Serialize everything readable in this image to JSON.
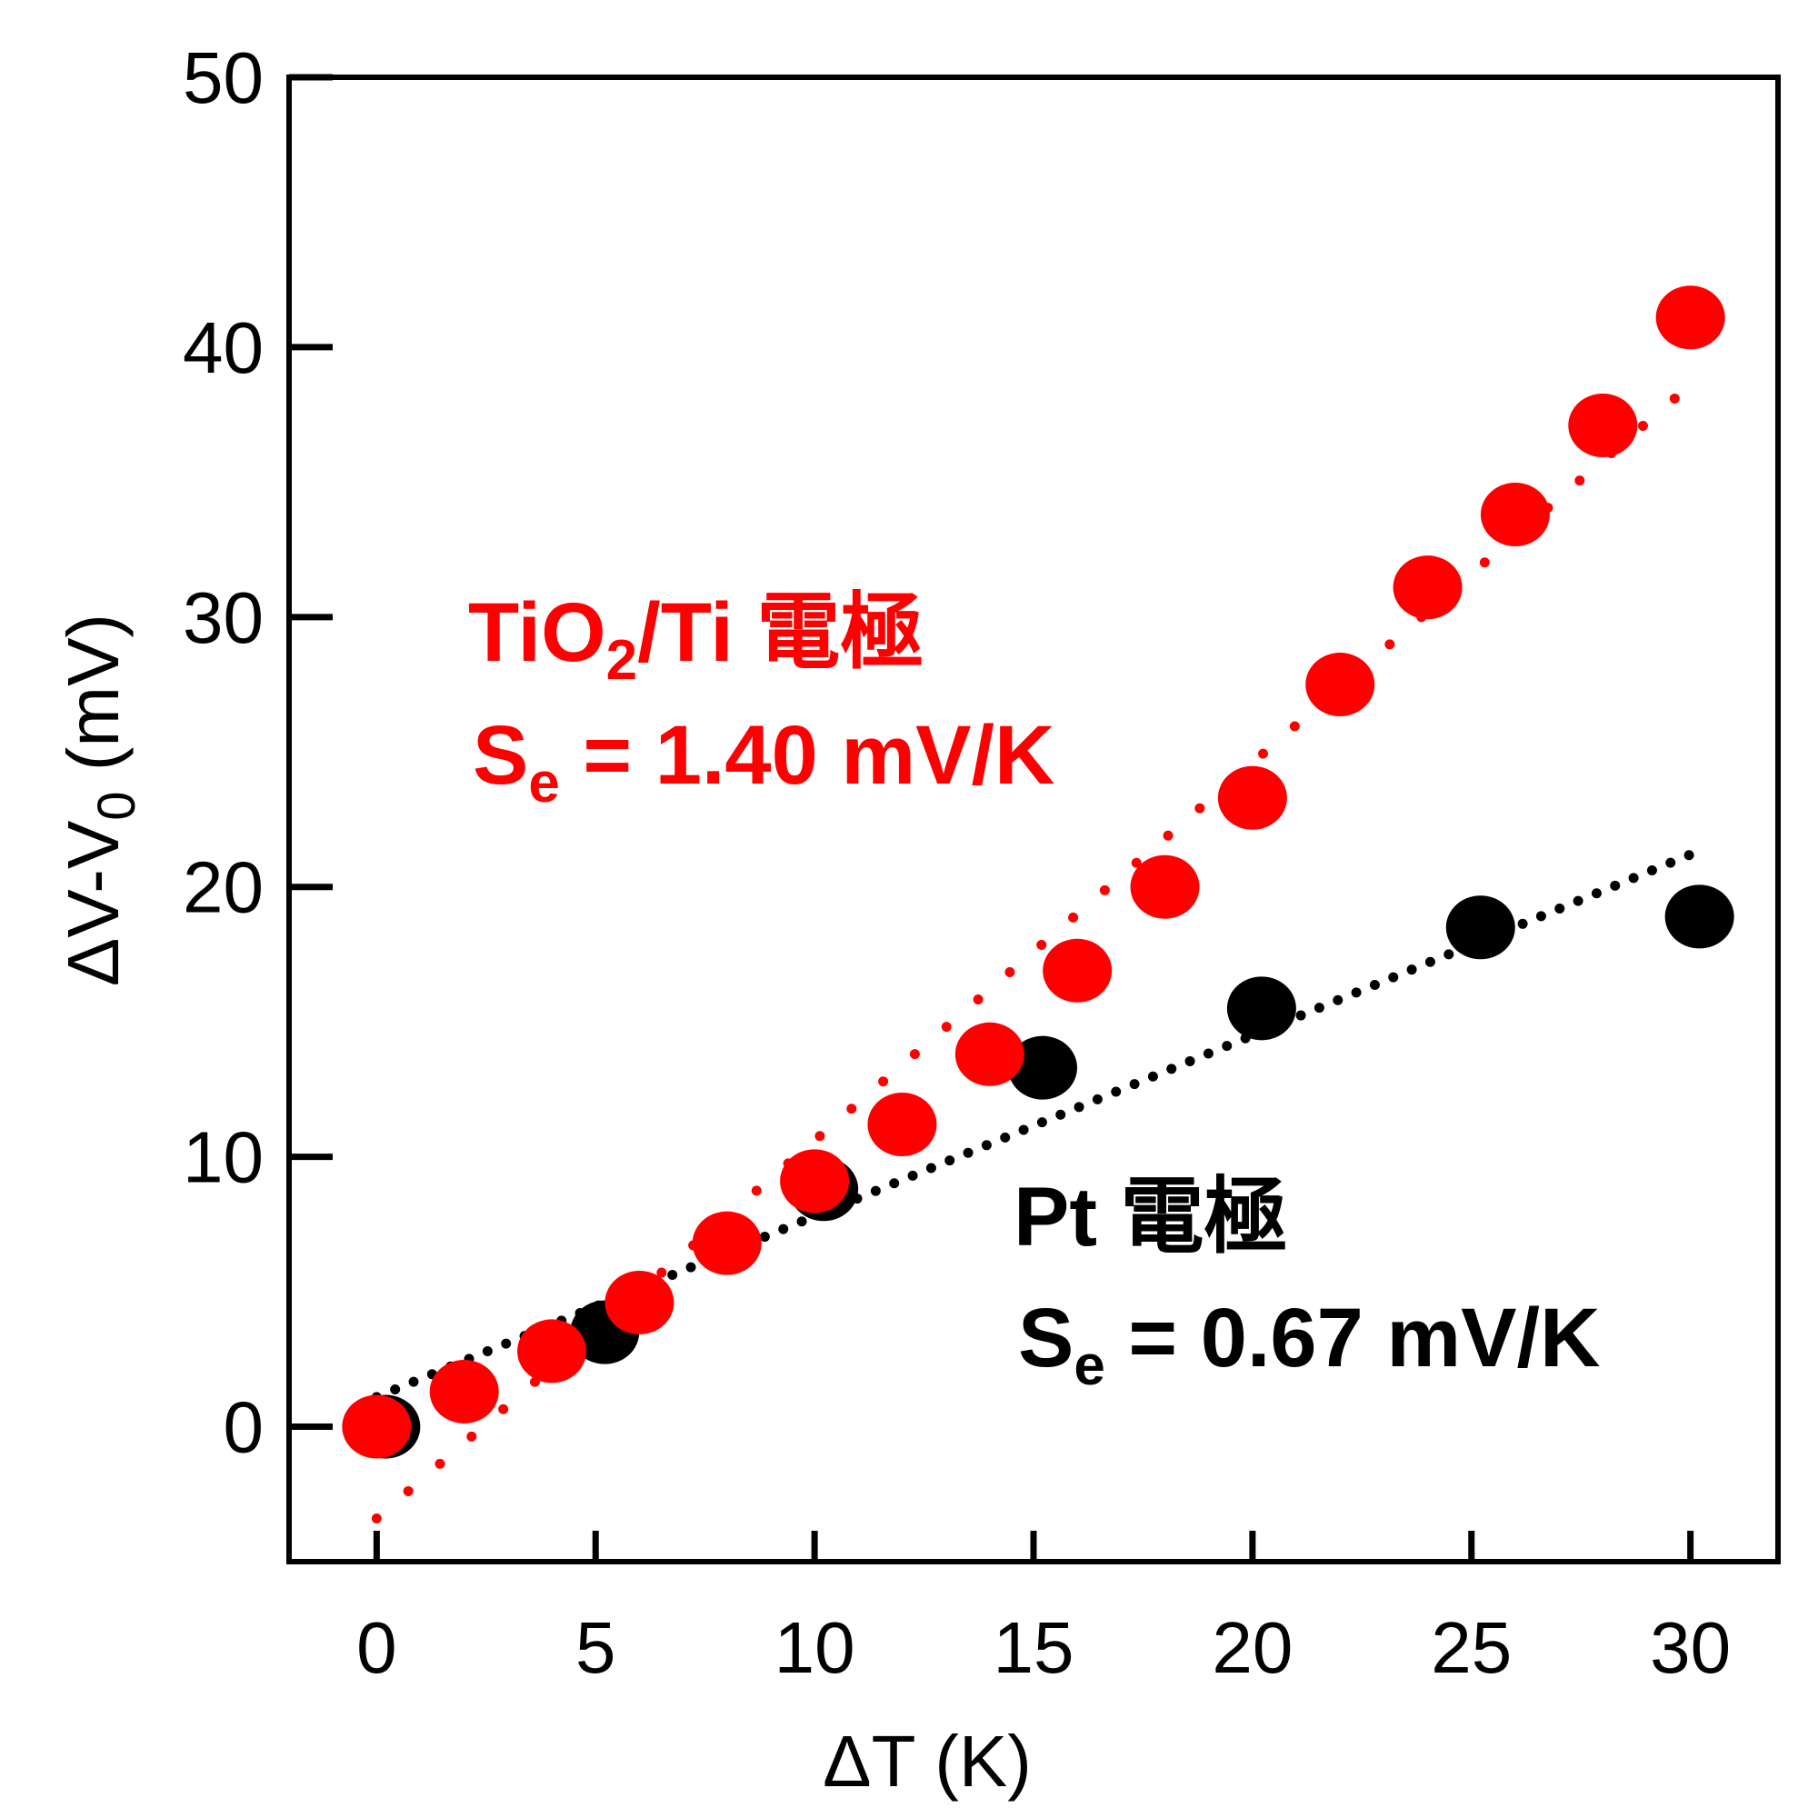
{
  "chart_data": {
    "type": "scatter",
    "xlabel": "ΔT (K)",
    "ylabel_main": "ΔV-V",
    "ylabel_sub": "0",
    "ylabel_unit": " (mV)",
    "xlim": [
      -2,
      32
    ],
    "ylim": [
      -5,
      50
    ],
    "xticks": [
      0,
      5,
      10,
      15,
      20,
      25,
      30
    ],
    "yticks": [
      0,
      10,
      20,
      30,
      40,
      50
    ],
    "grid": false,
    "series": [
      {
        "name": "Pt 電極",
        "color": "#000000",
        "x": [
          0,
          5,
          10,
          15,
          20,
          25,
          30
        ],
        "y": [
          0,
          3.5,
          8.8,
          13.3,
          15.5,
          18.5,
          18.9
        ],
        "fit_slope": 0.67,
        "fit_intercept": 1.1
      },
      {
        "name": "TiO2/Ti 電極",
        "color": "#ff0000",
        "x": [
          0,
          2,
          4,
          6,
          8,
          10,
          12,
          14,
          16,
          18,
          20,
          22,
          24,
          26,
          28,
          30
        ],
        "y": [
          0,
          1.3,
          2.8,
          4.6,
          6.8,
          9.1,
          11.2,
          13.8,
          16.9,
          20.0,
          23.3,
          27.5,
          31.1,
          33.8,
          37.1,
          41.1
        ],
        "fit_slope": 1.4,
        "fit_intercept": -3.4
      }
    ],
    "annotations": {
      "tio2": {
        "label_pre": "TiO",
        "label_sub": "2",
        "label_post": "/Ti 電極",
        "se_main": "S",
        "se_sub": "e",
        "se_value": " = 1.40 mV/K",
        "color": "#ff0000"
      },
      "pt": {
        "label": "Pt 電極",
        "se_main": "S",
        "se_sub": "e",
        "se_value": " = 0.67 mV/K",
        "color": "#000000"
      }
    }
  }
}
